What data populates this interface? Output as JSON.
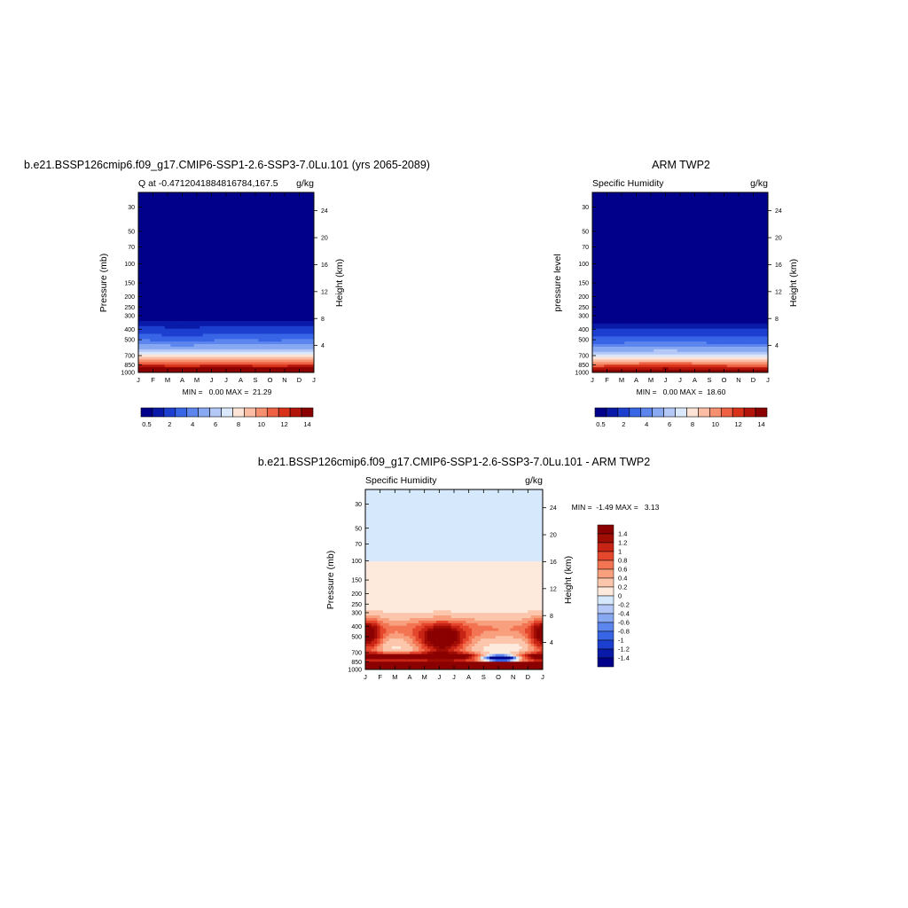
{
  "colors": {
    "levels12": [
      "#00008b",
      "#0a1aa8",
      "#1d3fcf",
      "#3865e6",
      "#5c86ee",
      "#88a9f2",
      "#b3c8f7",
      "#dbe7fb",
      "#fde4d6",
      "#fbbda4",
      "#f6906f",
      "#ee6143",
      "#d83219",
      "#b4150a",
      "#8b0000"
    ],
    "diff": [
      "#00008b",
      "#0a1aa8",
      "#1d3fcf",
      "#3865e6",
      "#5c86ee",
      "#88a9f2",
      "#b3c8f7",
      "#d6e8fb",
      "#fdeadc",
      "#fbc6ab",
      "#f8a07e",
      "#f27452",
      "#e4472c",
      "#c82415",
      "#a00d05",
      "#8b0000"
    ]
  },
  "chart_data": [
    {
      "type": "heatmap",
      "title": "b.e21.BSSP126cmip6.f09_g17.CMIP6-SSP1-2.6-SSP3-7.0Lu.101 (yrs 2065-2089)",
      "subtitle_left": "Q at -0.4712041884816784,167.5",
      "subtitle_right": "g/kg",
      "ylabel": "Pressure (mb)",
      "ylabel_right": "Height (km)",
      "x_ticks": [
        "J",
        "F",
        "M",
        "A",
        "M",
        "J",
        "J",
        "A",
        "S",
        "O",
        "N",
        "D",
        "J"
      ],
      "y_ticks": [
        "30",
        "50",
        "70",
        "100",
        "150",
        "200",
        "250",
        "300",
        "400",
        "500",
        "700",
        "850",
        "1000"
      ],
      "y_ticks_right": [
        "24",
        "20",
        "16",
        "12",
        "8",
        "4"
      ],
      "stats": "MIN =   0.00 MAX =  21.29",
      "colorbar_labels": [
        "0.5",
        "2",
        "4",
        "6",
        "8",
        "10",
        "12",
        "14"
      ],
      "min": 0.0,
      "max": 21.29,
      "scale": "log-pressure"
    },
    {
      "type": "heatmap",
      "title": "ARM TWP2",
      "subtitle_left": "Specific Humidity",
      "subtitle_right": "g/kg",
      "ylabel": "pressure level",
      "ylabel_right": "Height (km)",
      "x_ticks": [
        "J",
        "F",
        "M",
        "A",
        "M",
        "J",
        "J",
        "A",
        "S",
        "O",
        "N",
        "D",
        "J"
      ],
      "y_ticks": [
        "30",
        "50",
        "70",
        "100",
        "150",
        "200",
        "250",
        "300",
        "400",
        "500",
        "700",
        "850",
        "1000"
      ],
      "y_ticks_right": [
        "24",
        "20",
        "16",
        "12",
        "8",
        "4"
      ],
      "stats": "MIN =   0.00 MAX =  18.60",
      "colorbar_labels": [
        "0.5",
        "2",
        "4",
        "6",
        "8",
        "10",
        "12",
        "14"
      ],
      "min": 0.0,
      "max": 18.6,
      "scale": "log-pressure"
    },
    {
      "type": "heatmap",
      "title": "b.e21.BSSP126cmip6.f09_g17.CMIP6-SSP1-2.6-SSP3-7.0Lu.101 - ARM TWP2",
      "subtitle_left": "Specific Humidity",
      "subtitle_right": "g/kg",
      "ylabel": "Pressure (mb)",
      "ylabel_right": "Height (km)",
      "x_ticks": [
        "J",
        "F",
        "M",
        "A",
        "M",
        "J",
        "J",
        "A",
        "S",
        "O",
        "N",
        "D",
        "J"
      ],
      "y_ticks": [
        "30",
        "50",
        "70",
        "100",
        "150",
        "200",
        "250",
        "300",
        "400",
        "500",
        "700",
        "850",
        "1000"
      ],
      "y_ticks_right": [
        "24",
        "20",
        "16",
        "12",
        "8",
        "4"
      ],
      "stats": "MIN =  -1.49 MAX =   3.13",
      "colorbar_labels": [
        "1.4",
        "1.2",
        "1",
        "0.8",
        "0.6",
        "0.4",
        "0.2",
        "0",
        "-0.2",
        "-0.4",
        "-0.6",
        "-0.8",
        "-1",
        "-1.2",
        "-1.4"
      ],
      "min": -1.49,
      "max": 3.13,
      "scale": "log-pressure"
    }
  ]
}
